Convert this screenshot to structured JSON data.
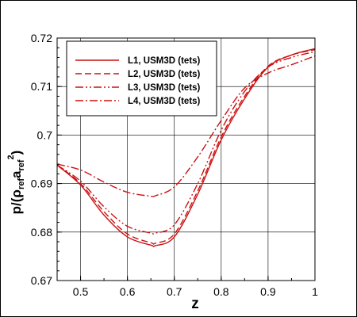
{
  "chart_data": {
    "type": "line",
    "xlabel": "z",
    "ylabel": {
      "p": "p/(",
      "rho": "ρ",
      "ref1": "ref",
      "a": "a",
      "ref2": "ref",
      "sup": "2",
      "close": ")"
    },
    "xlim": [
      0.45,
      1.0
    ],
    "ylim": [
      0.67,
      0.72
    ],
    "xticks": [
      "0.5",
      "0.6",
      "0.7",
      "0.8",
      "0.9",
      "1"
    ],
    "yticks": [
      "0.67",
      "0.68",
      "0.69",
      "0.7",
      "0.71",
      "0.72"
    ],
    "grid": true,
    "legend_position": "top-left",
    "line_color": "#cc1111",
    "series": [
      {
        "name": "L1, USM3D (tets)",
        "dash": "solid",
        "x": [
          0.45,
          0.5,
          0.55,
          0.6,
          0.65,
          0.66,
          0.7,
          0.75,
          0.8,
          0.85,
          0.9,
          0.95,
          1.0
        ],
        "y": [
          0.6938,
          0.6897,
          0.6835,
          0.679,
          0.6773,
          0.6772,
          0.679,
          0.6878,
          0.699,
          0.7075,
          0.714,
          0.7165,
          0.7178
        ]
      },
      {
        "name": "L2, USM3D (tets)",
        "dash": "dashed",
        "x": [
          0.45,
          0.5,
          0.55,
          0.6,
          0.65,
          0.66,
          0.7,
          0.75,
          0.8,
          0.85,
          0.9,
          0.95,
          1.0
        ],
        "y": [
          0.6938,
          0.69,
          0.6842,
          0.6796,
          0.6778,
          0.6777,
          0.6796,
          0.6885,
          0.6996,
          0.708,
          0.7142,
          0.7165,
          0.7176
        ]
      },
      {
        "name": "L3, USM3D (tets)",
        "dash": "dashdotdot",
        "x": [
          0.45,
          0.5,
          0.55,
          0.6,
          0.65,
          0.66,
          0.7,
          0.75,
          0.8,
          0.85,
          0.9,
          0.95,
          1.0
        ],
        "y": [
          0.6938,
          0.6905,
          0.6852,
          0.6812,
          0.6798,
          0.6798,
          0.6815,
          0.69,
          0.701,
          0.709,
          0.714,
          0.716,
          0.7172
        ]
      },
      {
        "name": "L4, USM3D (tets)",
        "dash": "dashdot",
        "x": [
          0.45,
          0.5,
          0.55,
          0.6,
          0.65,
          0.66,
          0.7,
          0.75,
          0.8,
          0.85,
          0.9,
          0.95,
          1.0
        ],
        "y": [
          0.694,
          0.6928,
          0.6903,
          0.6882,
          0.6874,
          0.6875,
          0.6893,
          0.6955,
          0.703,
          0.7097,
          0.7128,
          0.7145,
          0.7163
        ]
      }
    ]
  }
}
